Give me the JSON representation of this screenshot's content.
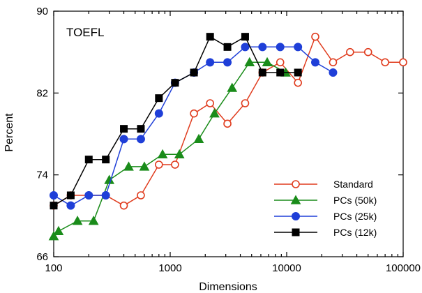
{
  "chart_data": {
    "type": "line",
    "title": "",
    "annotation": "TOEFL",
    "xlabel": "Dimensions",
    "ylabel": "Percent",
    "x_scale": "log",
    "xlim": [
      100,
      100000
    ],
    "ylim": [
      66,
      90
    ],
    "x_ticks": [
      100,
      1000,
      10000,
      100000
    ],
    "x_tick_labels": [
      "100",
      "1000",
      "10000",
      "100000"
    ],
    "y_ticks": [
      66,
      74,
      82,
      90
    ],
    "y_tick_labels": [
      "66",
      "74",
      "82",
      "90"
    ],
    "grid": false,
    "legend_position": "bottom-right",
    "series": [
      {
        "name": "Standard",
        "color": "#e03c1e",
        "marker": "circle-open",
        "points": [
          [
            100,
            71.0
          ],
          [
            140,
            72.0
          ],
          [
            200,
            72.0
          ],
          [
            280,
            72.0
          ],
          [
            400,
            71.0
          ],
          [
            560,
            72.0
          ],
          [
            800,
            75.0
          ],
          [
            1100,
            75.0
          ],
          [
            1600,
            80.0
          ],
          [
            2200,
            81.0
          ],
          [
            3100,
            79.0
          ],
          [
            4400,
            81.0
          ],
          [
            6200,
            84.0
          ],
          [
            8800,
            85.0
          ],
          [
            12500,
            83.0
          ],
          [
            17600,
            87.5
          ],
          [
            25000,
            85.0
          ],
          [
            35000,
            86.0
          ],
          [
            50000,
            86.0
          ],
          [
            70000,
            85.0
          ],
          [
            100000,
            85.0
          ]
        ]
      },
      {
        "name": "PCs (50k)",
        "color": "#1a8c1a",
        "marker": "triangle-filled",
        "points": [
          [
            100,
            68.0
          ],
          [
            110,
            68.5
          ],
          [
            160,
            69.5
          ],
          [
            220,
            69.5
          ],
          [
            300,
            73.5
          ],
          [
            440,
            74.8
          ],
          [
            600,
            74.8
          ],
          [
            860,
            76.0
          ],
          [
            1200,
            76.0
          ],
          [
            1760,
            77.5
          ],
          [
            2400,
            80.0
          ],
          [
            3400,
            82.5
          ],
          [
            4800,
            85.0
          ],
          [
            6800,
            85.0
          ],
          [
            9800,
            84.0
          ]
        ]
      },
      {
        "name": "PCs (25k)",
        "color": "#1f3fd8",
        "marker": "circle-filled",
        "points": [
          [
            100,
            72.0
          ],
          [
            140,
            71.0
          ],
          [
            200,
            72.0
          ],
          [
            280,
            72.0
          ],
          [
            400,
            77.5
          ],
          [
            560,
            77.5
          ],
          [
            800,
            80.0
          ],
          [
            1100,
            83.0
          ],
          [
            1600,
            84.0
          ],
          [
            2200,
            85.0
          ],
          [
            3100,
            85.0
          ],
          [
            4400,
            86.5
          ],
          [
            6200,
            86.5
          ],
          [
            8800,
            86.5
          ],
          [
            12500,
            86.5
          ],
          [
            17600,
            85.0
          ],
          [
            25000,
            84.0
          ]
        ]
      },
      {
        "name": "PCs (12k)",
        "color": "#000000",
        "marker": "square-filled",
        "points": [
          [
            100,
            71.0
          ],
          [
            140,
            72.0
          ],
          [
            200,
            75.5
          ],
          [
            280,
            75.5
          ],
          [
            400,
            78.5
          ],
          [
            560,
            78.5
          ],
          [
            800,
            81.5
          ],
          [
            1100,
            83.0
          ],
          [
            1600,
            84.0
          ],
          [
            2200,
            87.5
          ],
          [
            3100,
            86.5
          ],
          [
            4400,
            87.5
          ],
          [
            6200,
            84.0
          ],
          [
            8800,
            84.0
          ],
          [
            12500,
            84.0
          ]
        ]
      }
    ]
  }
}
